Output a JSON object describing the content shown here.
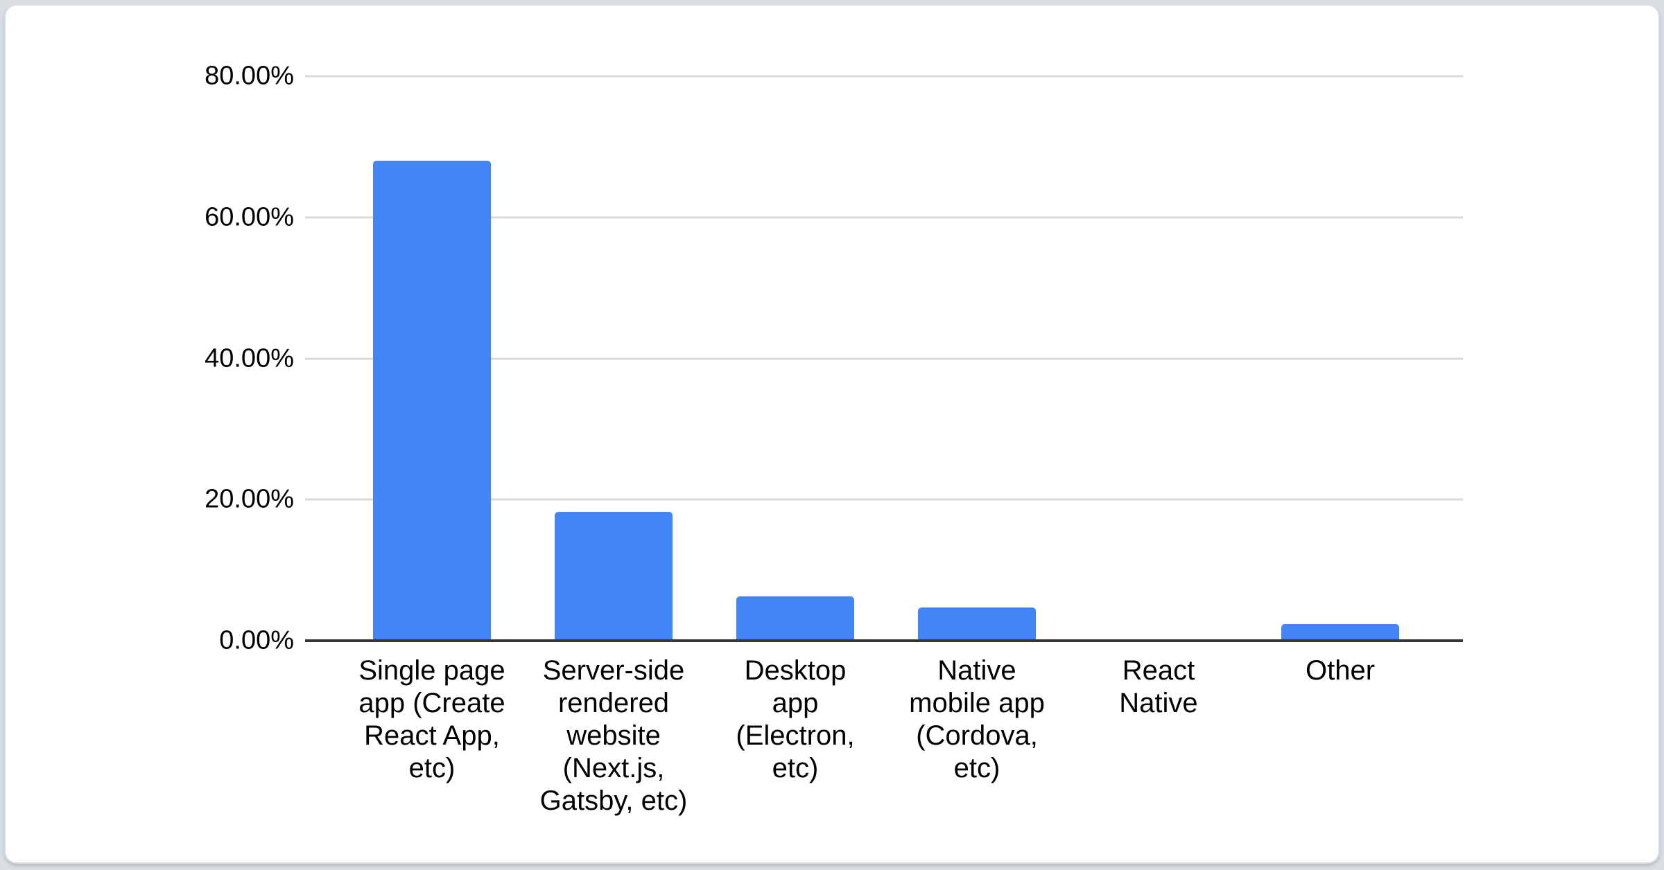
{
  "page": {
    "background_color": "#d9dee3",
    "card_background": "#ffffff",
    "card_border_color": "#d8dce0"
  },
  "chart_data": {
    "type": "bar",
    "title": "",
    "categories": [
      "Single page app (Create React App, etc)",
      "Server-side rendered website (Next.js, Gatsby, etc)",
      "Desktop app (Electron, etc)",
      "Native mobile app (Cordova, etc)",
      "React Native",
      "Other"
    ],
    "categories_wrapped": [
      "Single page\napp (Create\nReact App,\netc)",
      "Server-side\nrendered\nwebsite\n(Next.js,\nGatsby, etc)",
      "Desktop\napp\n(Electron,\netc)",
      "Native\nmobile app\n(Cordova,\netc)",
      "React\nNative",
      "Other"
    ],
    "values": [
      68.0,
      18.3,
      6.3,
      4.7,
      0,
      2.4
    ],
    "unit": "%",
    "xlabel": "",
    "ylabel": "",
    "y_ticks": [
      "0.00%",
      "20.00%",
      "40.00%",
      "60.00%",
      "80.00%"
    ],
    "y_tick_values": [
      0,
      20,
      40,
      60,
      80
    ],
    "ylim": [
      0,
      80
    ],
    "grid": true,
    "legend_position": "none",
    "bar_color": "#4285f4",
    "gridline_color": "#d9d9d9",
    "baseline_color": "#363636",
    "label_color": "#000000"
  }
}
